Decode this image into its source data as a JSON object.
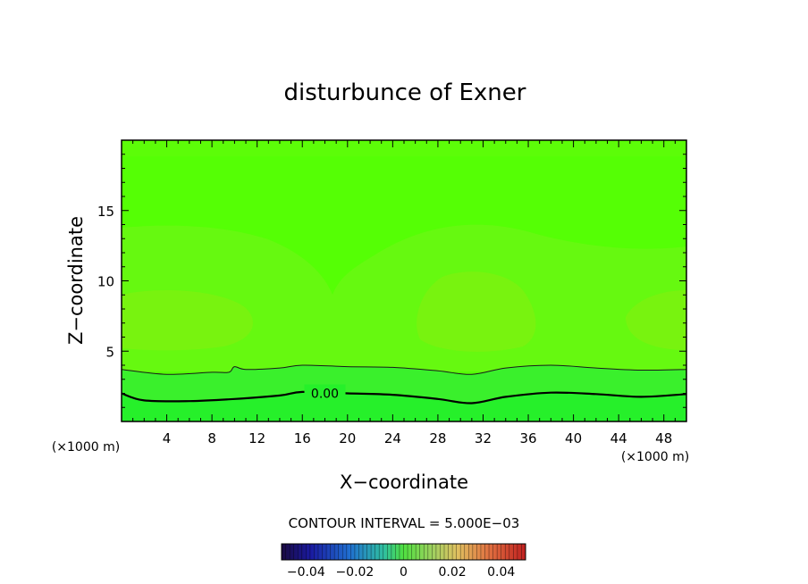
{
  "chart_data": {
    "type": "heatmap",
    "title": "disturbunce of Exner",
    "xlabel": "X−coordinate",
    "ylabel": "Z−coordinate",
    "x_unit": "(×1000 m)",
    "y_unit": "(×1000 m)",
    "xlim": [
      0,
      50
    ],
    "ylim": [
      0,
      20
    ],
    "x_ticks": [
      "4",
      "8",
      "12",
      "16",
      "20",
      "24",
      "28",
      "32",
      "36",
      "40",
      "44",
      "48"
    ],
    "y_ticks": [
      "5",
      "10",
      "15"
    ],
    "contour_interval_text": "CONTOUR INTERVAL = 5.000E−03",
    "contour_interval": 0.005,
    "contour_label": "0.00",
    "colorbar": {
      "range": [
        -0.05,
        0.05
      ],
      "tick_labels": [
        "−0.04",
        "−0.02",
        "0",
        "0.02",
        "0.04"
      ],
      "tick_values": [
        -0.04,
        -0.02,
        0,
        0.02,
        0.04
      ]
    },
    "contours": [
      {
        "level": 0.0,
        "label": "0.00",
        "points": [
          [
            0,
            2.0
          ],
          [
            2,
            1.5
          ],
          [
            6,
            1.45
          ],
          [
            10,
            1.6
          ],
          [
            14,
            1.85
          ],
          [
            16,
            2.1
          ],
          [
            20,
            2.0
          ],
          [
            24,
            1.9
          ],
          [
            28,
            1.6
          ],
          [
            31,
            1.3
          ],
          [
            34,
            1.75
          ],
          [
            38,
            2.05
          ],
          [
            42,
            1.95
          ],
          [
            46,
            1.75
          ],
          [
            50,
            1.95
          ]
        ]
      },
      {
        "level": 0.005,
        "label": "",
        "points": [
          [
            0,
            3.7
          ],
          [
            4,
            3.35
          ],
          [
            8,
            3.5
          ],
          [
            9.5,
            3.5
          ],
          [
            10,
            3.9
          ],
          [
            11,
            3.7
          ],
          [
            14,
            3.8
          ],
          [
            16,
            4.0
          ],
          [
            20,
            3.9
          ],
          [
            24,
            3.85
          ],
          [
            28,
            3.6
          ],
          [
            31,
            3.35
          ],
          [
            34,
            3.8
          ],
          [
            38,
            4.0
          ],
          [
            42,
            3.8
          ],
          [
            46,
            3.65
          ],
          [
            50,
            3.7
          ]
        ]
      }
    ],
    "colors": {
      "background_field": "#55ff05",
      "near_ground": "#26f02a",
      "mid_band": "#3af02c",
      "upper_band": "#66f910",
      "light_lobes": "#78f30f",
      "top_band": "#5cfd08"
    }
  }
}
